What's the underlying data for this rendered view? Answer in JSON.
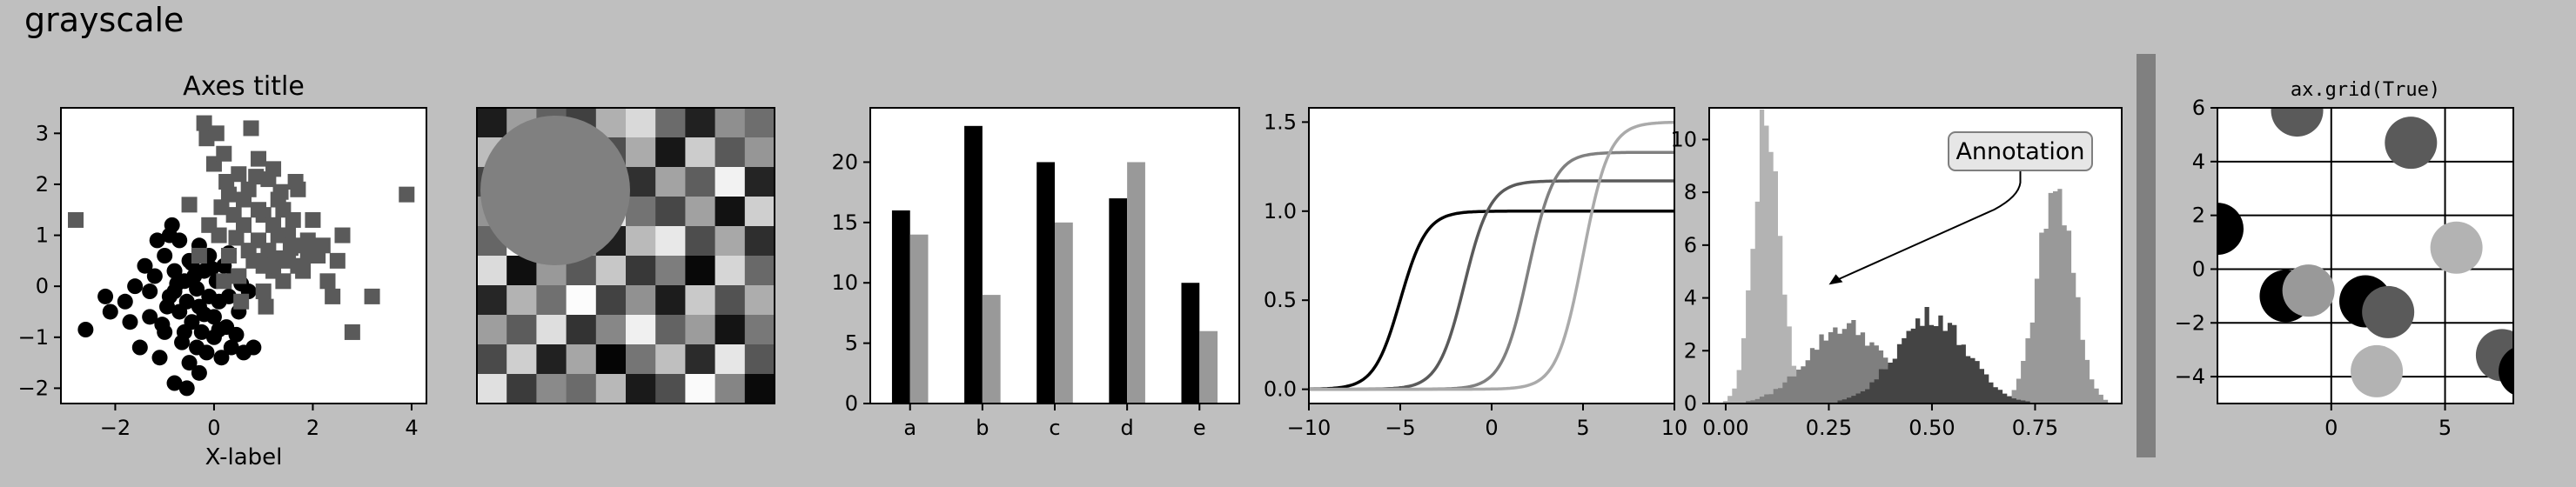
{
  "figure": {
    "title": "grayscale",
    "colors": {
      "background": "#bfbfbf",
      "title": "#191970",
      "black": "#000000",
      "dark": "#5a5a5a",
      "mid": "#7f7f7f",
      "light": "#999999",
      "lighter": "#b3b3b3"
    }
  },
  "chart_data": [
    {
      "type": "scatter",
      "title": "Axes title",
      "xlabel": "X-label",
      "ylabel": "",
      "xlim": [
        -3.1,
        4.3
      ],
      "ylim": [
        -2.3,
        3.5
      ],
      "xticks": [
        -2,
        0,
        2,
        4
      ],
      "yticks": [
        -2,
        -1,
        0,
        1,
        2,
        3
      ],
      "series": [
        {
          "marker": "circle",
          "color": "#000000",
          "points": [
            [
              -2.6,
              -0.85
            ],
            [
              -2.1,
              -0.5
            ],
            [
              -1.8,
              -0.3
            ],
            [
              -1.6,
              0
            ],
            [
              -1.5,
              -1.2
            ],
            [
              -1.4,
              0.4
            ],
            [
              -1.3,
              -0.6
            ],
            [
              -1.2,
              0.2
            ],
            [
              -1.1,
              -1.4
            ],
            [
              -1.0,
              0.6
            ],
            [
              -1.0,
              -0.9
            ],
            [
              -0.9,
              -0.2
            ],
            [
              -0.85,
              1.2
            ],
            [
              -0.8,
              -1.9
            ],
            [
              -0.8,
              0.3
            ],
            [
              -0.7,
              -0.5
            ],
            [
              -0.7,
              0.9
            ],
            [
              -0.65,
              -1.1
            ],
            [
              -0.6,
              0.1
            ],
            [
              -0.55,
              -0.3
            ],
            [
              -0.5,
              0.5
            ],
            [
              -0.5,
              -1.5
            ],
            [
              -0.45,
              -0.7
            ],
            [
              -0.4,
              0.2
            ],
            [
              -0.35,
              -1.2
            ],
            [
              -0.3,
              0.8
            ],
            [
              -0.3,
              -0.4
            ],
            [
              -0.25,
              -0.9
            ],
            [
              -0.2,
              0.3
            ],
            [
              -0.15,
              -1.3
            ],
            [
              -0.1,
              -0.2
            ],
            [
              -0.1,
              0.6
            ],
            [
              0,
              -0.6
            ],
            [
              0,
              -1.0
            ],
            [
              0.05,
              0.1
            ],
            [
              0.1,
              -0.3
            ],
            [
              0.15,
              -1.4
            ],
            [
              0.2,
              0.4
            ],
            [
              0.25,
              -0.8
            ],
            [
              0.3,
              -0.2
            ],
            [
              0.35,
              -1.2
            ],
            [
              0.4,
              0.2
            ],
            [
              0.5,
              -0.5
            ],
            [
              0.6,
              -1.3
            ],
            [
              0.7,
              -0.1
            ],
            [
              0.8,
              -1.2
            ],
            [
              -1.3,
              -0.1
            ],
            [
              -0.95,
              -0.4
            ],
            [
              -0.75,
              0.05
            ],
            [
              -0.6,
              -0.9
            ],
            [
              -0.45,
              0.45
            ],
            [
              -0.35,
              -0.05
            ],
            [
              -0.2,
              -0.55
            ],
            [
              -0.05,
              0.35
            ],
            [
              0.1,
              -0.85
            ],
            [
              0.3,
              0.65
            ],
            [
              -1.15,
              0.9
            ],
            [
              -0.9,
              1.0
            ],
            [
              -1.7,
              -0.7
            ],
            [
              -2.2,
              -0.2
            ],
            [
              -0.55,
              -2.0
            ],
            [
              -0.3,
              -1.7
            ],
            [
              0.45,
              -0.95
            ],
            [
              0.55,
              0.05
            ],
            [
              -0.8,
              -0.1
            ],
            [
              -1.05,
              -0.75
            ]
          ]
        },
        {
          "marker": "square",
          "color": "#5a5a5a",
          "points": [
            [
              -2.8,
              1.3
            ],
            [
              -0.2,
              3.2
            ],
            [
              -0.15,
              2.9
            ],
            [
              0,
              2.4
            ],
            [
              0.05,
              3.0
            ],
            [
              0.2,
              2.6
            ],
            [
              0.5,
              2.2
            ],
            [
              0.7,
              1.9
            ],
            [
              0.75,
              3.1
            ],
            [
              0.9,
              2.5
            ],
            [
              1.0,
              1.4
            ],
            [
              1.1,
              2.1
            ],
            [
              1.2,
              1.2
            ],
            [
              1.3,
              1.7
            ],
            [
              1.4,
              1.5
            ],
            [
              1.5,
              1.0
            ],
            [
              1.6,
              0.8
            ],
            [
              1.7,
              1.9
            ],
            [
              1.8,
              0.3
            ],
            [
              1.9,
              0.9
            ],
            [
              2.0,
              1.3
            ],
            [
              2.1,
              0.6
            ],
            [
              2.2,
              0.8
            ],
            [
              2.4,
              -0.2
            ],
            [
              2.5,
              0.5
            ],
            [
              2.6,
              1.0
            ],
            [
              2.8,
              -0.9
            ],
            [
              3.2,
              -0.2
            ],
            [
              3.9,
              1.8
            ],
            [
              0.1,
              1.0
            ],
            [
              0.3,
              0.6
            ],
            [
              0.4,
              1.4
            ],
            [
              0.5,
              0.2
            ],
            [
              0.6,
              1.2
            ],
            [
              0.8,
              0.5
            ],
            [
              0.9,
              0.9
            ],
            [
              1.0,
              -0.1
            ],
            [
              1.1,
              0.7
            ],
            [
              1.2,
              0.3
            ],
            [
              1.3,
              1.0
            ],
            [
              1.4,
              0.1
            ],
            [
              1.5,
              0.5
            ],
            [
              1.6,
              1.3
            ],
            [
              1.7,
              0.4
            ],
            [
              1.2,
              2.3
            ],
            [
              -0.5,
              1.6
            ],
            [
              -0.3,
              0.6
            ],
            [
              0.2,
              0.1
            ],
            [
              0.6,
              1.7
            ],
            [
              0.7,
              0.7
            ],
            [
              0.3,
              1.8
            ],
            [
              0.9,
              1.5
            ],
            [
              1.0,
              0.4
            ],
            [
              1.35,
              1.85
            ],
            [
              1.55,
              0.75
            ],
            [
              0.45,
              0.95
            ],
            [
              0.15,
              1.55
            ],
            [
              1.25,
              0.55
            ],
            [
              0.85,
              2.15
            ],
            [
              1.9,
              0.6
            ],
            [
              2.3,
              0.1
            ],
            [
              1.65,
              2.05
            ],
            [
              0.55,
              -0.3
            ],
            [
              1.05,
              -0.4
            ],
            [
              0.25,
              2.05
            ],
            [
              -0.1,
              1.2
            ]
          ]
        }
      ]
    },
    {
      "type": "heatmap",
      "grid": [
        10,
        10
      ],
      "cells": [
        0.11,
        0.62,
        0.38,
        0.25,
        0.69,
        0.85,
        0.42,
        0.13,
        0.56,
        0.43,
        0.74,
        0.21,
        0.92,
        0.48,
        0.31,
        0.67,
        0.09,
        0.8,
        0.35,
        0.59,
        0.27,
        0.83,
        0.05,
        0.71,
        0.5,
        0.19,
        0.64,
        0.37,
        0.95,
        0.14,
        0.58,
        0.33,
        0.77,
        0.16,
        0.89,
        0.45,
        0.28,
        0.63,
        0.07,
        0.81,
        0.4,
        0.97,
        0.24,
        0.55,
        0.12,
        0.73,
        0.91,
        0.3,
        0.66,
        0.18,
        0.86,
        0.06,
        0.6,
        0.35,
        0.78,
        0.22,
        0.49,
        0.03,
        0.84,
        0.41,
        0.15,
        0.7,
        0.44,
        0.99,
        0.26,
        0.57,
        0.11,
        0.79,
        0.32,
        0.68,
        0.62,
        0.36,
        0.87,
        0.2,
        0.53,
        0.94,
        0.39,
        0.61,
        0.08,
        0.47,
        0.29,
        0.81,
        0.13,
        0.65,
        0.02,
        0.46,
        0.75,
        0.17,
        0.9,
        0.34,
        0.88,
        0.23,
        0.54,
        0.42,
        0.72,
        0.1,
        0.31,
        0.98,
        0.52,
        0.04
      ]
    },
    {
      "type": "bar",
      "categories": [
        "a",
        "b",
        "c",
        "d",
        "e"
      ],
      "series": [
        {
          "color": "#000000",
          "values": [
            16,
            23,
            20,
            17,
            10
          ]
        },
        {
          "color": "#999999",
          "values": [
            14,
            9,
            15,
            20,
            6
          ]
        }
      ],
      "ylim": [
        0,
        24.5
      ],
      "yticks": [
        0,
        5,
        10,
        15,
        20
      ]
    },
    {
      "type": "line",
      "xlim": [
        -10,
        10
      ],
      "ylim": [
        -0.08,
        1.58
      ],
      "xticks": [
        -10,
        -5,
        0,
        5,
        10
      ],
      "yticks": [
        0.0,
        0.5,
        1.0,
        1.5
      ],
      "series": [
        {
          "color": "#000000",
          "center": -5,
          "amplitude": 1.0
        },
        {
          "color": "#5a5a5a",
          "center": -1.5,
          "amplitude": 1.17
        },
        {
          "color": "#808080",
          "center": 2.0,
          "amplitude": 1.33
        },
        {
          "color": "#aaaaaa",
          "center": 5.0,
          "amplitude": 1.5
        }
      ]
    },
    {
      "type": "histogram",
      "xlim": [
        -0.04,
        0.96
      ],
      "ylim": [
        0,
        11.2
      ],
      "xticks": [
        0.0,
        0.25,
        0.5,
        0.75
      ],
      "yticks": [
        0,
        2,
        4,
        6,
        8,
        10
      ],
      "annotation": {
        "text": "Annotation",
        "xy": [
          0.25,
          4.5
        ]
      },
      "series": [
        {
          "color": "#b3b3b3",
          "mean": 0.1,
          "sd": 0.033,
          "amp": 10.8
        },
        {
          "color": "#999999",
          "mean": 0.8,
          "sd": 0.043,
          "amp": 8.1
        },
        {
          "color": "#7f7f7f",
          "mean": 0.29,
          "sd": 0.09,
          "amp": 2.95
        },
        {
          "color": "#444444",
          "mean": 0.5,
          "sd": 0.085,
          "amp": 3.35
        }
      ]
    },
    {
      "type": "colorbar",
      "color": "#808080"
    },
    {
      "type": "scatter",
      "title": "ax.grid(True)",
      "xlim": [
        -5,
        8
      ],
      "ylim": [
        -5,
        6
      ],
      "xticks": [
        0,
        5
      ],
      "yticks": [
        -4,
        -2,
        0,
        2,
        4,
        6
      ],
      "grid": true,
      "points": [
        [
          -5,
          1.5,
          "#000000"
        ],
        [
          -1.5,
          5.9,
          "#5a5a5a"
        ],
        [
          3.5,
          4.7,
          "#5a5a5a"
        ],
        [
          5.5,
          0.8,
          "#b3b3b3"
        ],
        [
          -2.0,
          -1.0,
          "#000000"
        ],
        [
          -1.0,
          -0.8,
          "#999999"
        ],
        [
          1.5,
          -1.2,
          "#000000"
        ],
        [
          2.5,
          -1.6,
          "#5a5a5a"
        ],
        [
          7.5,
          -3.2,
          "#5a5a5a"
        ],
        [
          8.5,
          -3.8,
          "#000000"
        ],
        [
          2.0,
          -3.8,
          "#b3b3b3"
        ]
      ]
    }
  ]
}
